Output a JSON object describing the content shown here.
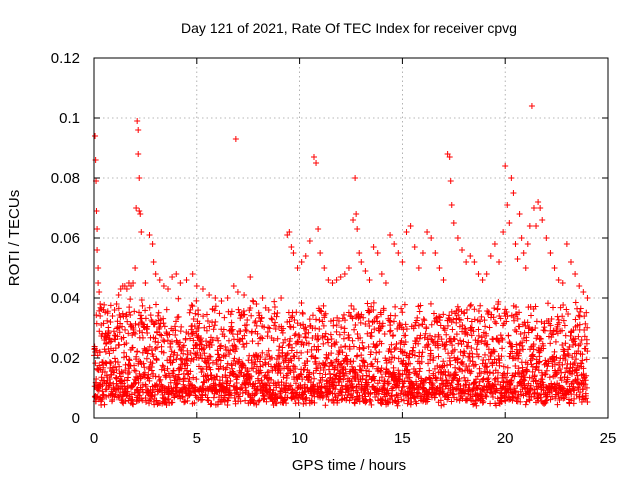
{
  "chart_data": {
    "type": "scatter",
    "title": "Day 121 of 2021, Rate Of TEC Index for receiver cpvg",
    "xlabel": "GPS time / hours",
    "ylabel": "ROTI / TECUs",
    "xlim": [
      0,
      25
    ],
    "ylim": [
      0,
      0.12
    ],
    "x_ticks": [
      "0",
      "5",
      "10",
      "15",
      "20",
      "25"
    ],
    "y_ticks": [
      "0",
      "0.02",
      "0.04",
      "0.06",
      "0.08",
      "0.1",
      "0.12"
    ],
    "grid": true,
    "marker": "plus",
    "color": "#ff0000",
    "series": [
      {
        "x": [
          0.05,
          0.08,
          0.1,
          0.12,
          0.15,
          0.15,
          0.2,
          0.2,
          0.25,
          0.3,
          0.3,
          0.35,
          0.4,
          0.5,
          0.6,
          0.7,
          0.8,
          0.9,
          1.0,
          1.1,
          1.2,
          1.3,
          1.4,
          1.5,
          1.6,
          1.7,
          1.8,
          1.9,
          2.0,
          2.05,
          2.1,
          2.15,
          2.15,
          2.2,
          2.2,
          2.25,
          2.3,
          2.5,
          2.7,
          2.85,
          2.9,
          3.0,
          3.2,
          3.4,
          3.6,
          3.8,
          4.0,
          4.2,
          4.5,
          4.8,
          5.0,
          5.3,
          5.6,
          5.9,
          6.2,
          6.5,
          6.8,
          6.9,
          7.0,
          7.3,
          7.6,
          7.9,
          8.2,
          8.5,
          8.8,
          9.1,
          9.4,
          9.5,
          9.6,
          9.7,
          9.9,
          10.1,
          10.3,
          10.5,
          10.7,
          10.8,
          10.9,
          11.0,
          11.2,
          11.4,
          11.6,
          11.8,
          12.0,
          12.2,
          12.4,
          12.6,
          12.7,
          12.75,
          12.8,
          12.9,
          13.0,
          13.2,
          13.4,
          13.6,
          13.8,
          14.0,
          14.2,
          14.4,
          14.6,
          14.8,
          15.0,
          15.2,
          15.4,
          15.6,
          15.8,
          16.0,
          16.2,
          16.4,
          16.6,
          16.8,
          17.0,
          17.2,
          17.3,
          17.35,
          17.4,
          17.5,
          17.7,
          17.9,
          18.1,
          18.3,
          18.5,
          18.7,
          18.9,
          19.1,
          19.3,
          19.5,
          19.7,
          19.9,
          20.0,
          20.1,
          20.2,
          20.3,
          20.4,
          20.5,
          20.6,
          20.7,
          20.8,
          20.9,
          21.0,
          21.1,
          21.2,
          21.3,
          21.4,
          21.5,
          21.6,
          21.7,
          21.8,
          22.0,
          22.2,
          22.4,
          22.6,
          22.8,
          23.0,
          23.2,
          23.4,
          23.6,
          23.8,
          24.0
        ],
        "y": [
          0.094,
          0.086,
          0.079,
          0.069,
          0.063,
          0.056,
          0.05,
          0.045,
          0.042,
          0.038,
          0.034,
          0.031,
          0.028,
          0.026,
          0.025,
          0.029,
          0.032,
          0.034,
          0.036,
          0.038,
          0.041,
          0.043,
          0.044,
          0.044,
          0.043,
          0.045,
          0.044,
          0.045,
          0.05,
          0.07,
          0.099,
          0.096,
          0.088,
          0.08,
          0.069,
          0.068,
          0.062,
          0.045,
          0.061,
          0.058,
          0.052,
          0.048,
          0.046,
          0.044,
          0.043,
          0.047,
          0.048,
          0.045,
          0.046,
          0.048,
          0.044,
          0.043,
          0.041,
          0.04,
          0.039,
          0.04,
          0.044,
          0.093,
          0.042,
          0.041,
          0.047,
          0.038,
          0.04,
          0.036,
          0.037,
          0.04,
          0.061,
          0.062,
          0.057,
          0.055,
          0.05,
          0.052,
          0.054,
          0.059,
          0.087,
          0.085,
          0.063,
          0.055,
          0.05,
          0.046,
          0.045,
          0.046,
          0.047,
          0.048,
          0.05,
          0.066,
          0.08,
          0.068,
          0.063,
          0.055,
          0.052,
          0.049,
          0.046,
          0.057,
          0.055,
          0.048,
          0.045,
          0.061,
          0.058,
          0.055,
          0.052,
          0.062,
          0.064,
          0.057,
          0.05,
          0.055,
          0.062,
          0.06,
          0.055,
          0.05,
          0.046,
          0.088,
          0.087,
          0.079,
          0.071,
          0.065,
          0.06,
          0.056,
          0.052,
          0.054,
          0.052,
          0.048,
          0.046,
          0.048,
          0.054,
          0.058,
          0.052,
          0.062,
          0.084,
          0.071,
          0.065,
          0.08,
          0.075,
          0.058,
          0.053,
          0.068,
          0.06,
          0.055,
          0.05,
          0.058,
          0.064,
          0.104,
          0.07,
          0.064,
          0.072,
          0.07,
          0.066,
          0.06,
          0.055,
          0.05,
          0.046,
          0.045,
          0.058,
          0.052,
          0.048,
          0.044,
          0.042,
          0.04
        ]
      }
    ]
  }
}
